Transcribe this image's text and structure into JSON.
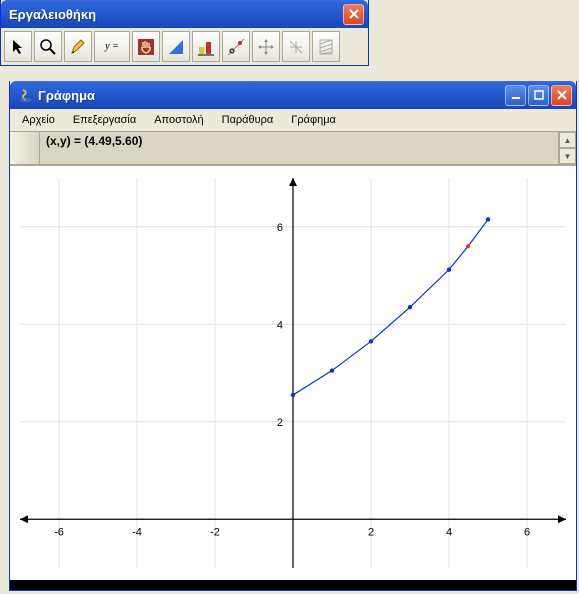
{
  "toolbox": {
    "title": "Εργαλειοθήκη",
    "tools": [
      {
        "name": "pointer-tool",
        "glyph": "arrow"
      },
      {
        "name": "magnify-tool",
        "glyph": "magnify"
      },
      {
        "name": "pencil-tool",
        "glyph": "pencil"
      },
      {
        "name": "function-tool",
        "label": "y ="
      },
      {
        "name": "grab-tool",
        "glyph": "hand"
      },
      {
        "name": "triangle-tool",
        "glyph": "triangle"
      },
      {
        "name": "barchart-tool",
        "glyph": "barchart"
      },
      {
        "name": "tangent-tool",
        "glyph": "tangent"
      },
      {
        "name": "move-tool",
        "glyph": "movearrows"
      },
      {
        "name": "grid-tool",
        "glyph": "gridsq"
      },
      {
        "name": "hatch-tool",
        "glyph": "hatch"
      }
    ]
  },
  "graph": {
    "title": "Γράφημα",
    "menu": [
      "Αρχείο",
      "Επεξεργασία",
      "Αποστολή",
      "Παράθυρα",
      "Γράφημα"
    ],
    "coord_label": "(x,y) = (4.49,5.60)",
    "chart": {
      "type": "line",
      "xlim": [
        -7,
        7
      ],
      "ylim": [
        -1,
        7
      ],
      "xtick_step": 2,
      "ytick_step": 2,
      "xtick_labels": [
        "-6",
        "-4",
        "-2",
        "",
        "2",
        "4",
        "6"
      ],
      "ytick_labels": [
        "2",
        "4",
        "6"
      ],
      "background_color": "#ffffff",
      "grid_color": "#e0e0e0",
      "axis_color": "#000000",
      "curve_color": "#1030d0",
      "curve_width": 1.2,
      "points": [
        {
          "x": 0.0,
          "y": 2.55
        },
        {
          "x": 1.0,
          "y": 3.05
        },
        {
          "x": 2.0,
          "y": 3.65
        },
        {
          "x": 3.0,
          "y": 4.35
        },
        {
          "x": 4.0,
          "y": 5.12
        },
        {
          "x": 4.49,
          "y": 5.6,
          "highlight": true
        },
        {
          "x": 5.0,
          "y": 6.15
        }
      ],
      "label_fontsize": 11
    }
  }
}
